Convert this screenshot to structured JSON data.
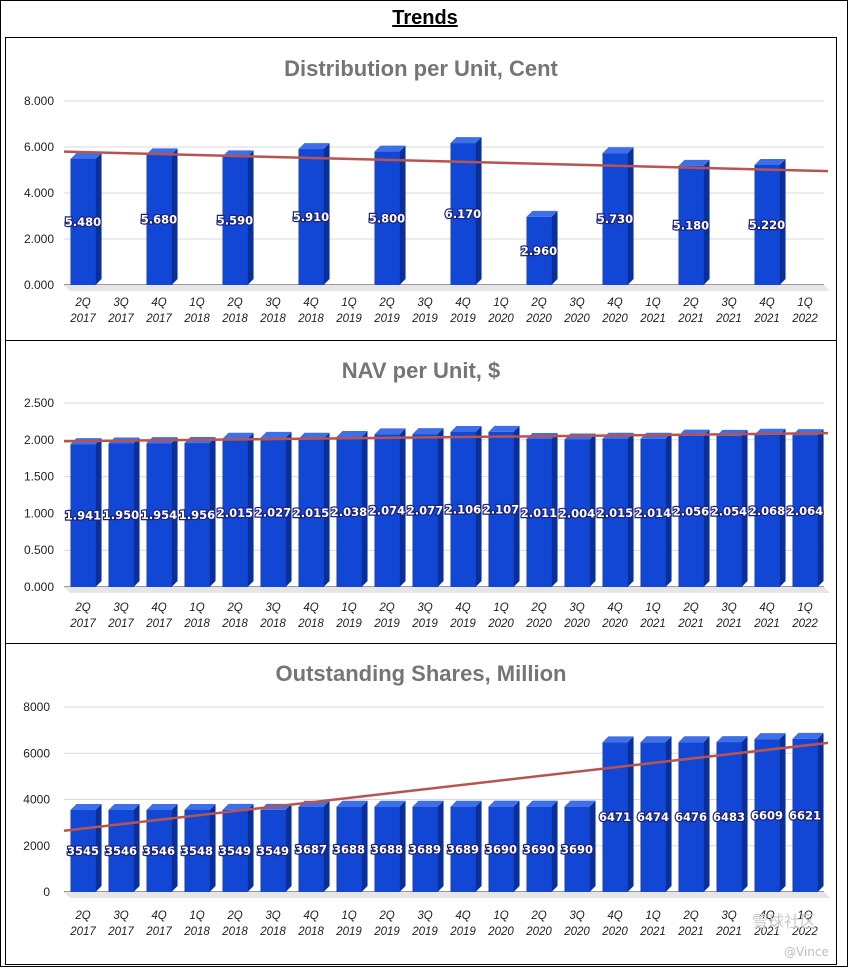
{
  "page_title": "Trends",
  "watermark": {
    "text": "雪球社区",
    "author": "@Vince"
  },
  "colors": {
    "bar_front": "#1247d6",
    "bar_side": "#0b2f94",
    "bar_top": "#3d6fe8",
    "trend": "#b85450",
    "grid": "#d9d9d9"
  },
  "chart_data": [
    {
      "id": "dist",
      "type": "bar",
      "title": "Distribution per Unit, Cent",
      "xlabel": "",
      "ylabel": "",
      "ylim": [
        0,
        8
      ],
      "y_ticks": [
        "8.000",
        "6.000",
        "4.000",
        "2.000",
        "0.000"
      ],
      "y_tick_values": [
        8,
        6,
        4,
        2,
        0
      ],
      "categories": [
        [
          "2Q",
          "2017"
        ],
        [
          "3Q",
          "2017"
        ],
        [
          "4Q",
          "2017"
        ],
        [
          "1Q",
          "2018"
        ],
        [
          "2Q",
          "2018"
        ],
        [
          "3Q",
          "2018"
        ],
        [
          "4Q",
          "2018"
        ],
        [
          "1Q",
          "2019"
        ],
        [
          "2Q",
          "2019"
        ],
        [
          "3Q",
          "2019"
        ],
        [
          "4Q",
          "2019"
        ],
        [
          "1Q",
          "2020"
        ],
        [
          "2Q",
          "2020"
        ],
        [
          "3Q",
          "2020"
        ],
        [
          "4Q",
          "2020"
        ],
        [
          "1Q",
          "2021"
        ],
        [
          "2Q",
          "2021"
        ],
        [
          "3Q",
          "2021"
        ],
        [
          "4Q",
          "2021"
        ],
        [
          "1Q",
          "2022"
        ]
      ],
      "values": [
        5.48,
        null,
        5.68,
        null,
        5.59,
        null,
        5.91,
        null,
        5.8,
        null,
        6.17,
        null,
        2.96,
        null,
        5.73,
        null,
        5.18,
        null,
        5.22,
        null
      ],
      "labels": [
        "5.480",
        "",
        "5.680",
        "",
        "5.590",
        "",
        "5.910",
        "",
        "5.800",
        "",
        "6.170",
        "",
        "2.960",
        "",
        "5.730",
        "",
        "5.180",
        "",
        "5.220",
        ""
      ],
      "trendline": {
        "start": 5.8,
        "end": 4.95
      }
    },
    {
      "id": "nav",
      "type": "bar",
      "title": "NAV per Unit, $",
      "xlabel": "",
      "ylabel": "",
      "ylim": [
        0,
        2.5
      ],
      "y_ticks": [
        "2.500",
        "2.000",
        "1.500",
        "1.000",
        "0.500",
        "0.000"
      ],
      "y_tick_values": [
        2.5,
        2.0,
        1.5,
        1.0,
        0.5,
        0
      ],
      "categories": [
        [
          "2Q",
          "2017"
        ],
        [
          "3Q",
          "2017"
        ],
        [
          "4Q",
          "2017"
        ],
        [
          "1Q",
          "2018"
        ],
        [
          "2Q",
          "2018"
        ],
        [
          "3Q",
          "2018"
        ],
        [
          "4Q",
          "2018"
        ],
        [
          "1Q",
          "2019"
        ],
        [
          "2Q",
          "2019"
        ],
        [
          "3Q",
          "2019"
        ],
        [
          "4Q",
          "2019"
        ],
        [
          "1Q",
          "2020"
        ],
        [
          "2Q",
          "2020"
        ],
        [
          "3Q",
          "2020"
        ],
        [
          "4Q",
          "2020"
        ],
        [
          "1Q",
          "2021"
        ],
        [
          "2Q",
          "2021"
        ],
        [
          "3Q",
          "2021"
        ],
        [
          "4Q",
          "2021"
        ],
        [
          "1Q",
          "2022"
        ]
      ],
      "values": [
        1.941,
        1.95,
        1.954,
        1.956,
        2.015,
        2.027,
        2.015,
        2.038,
        2.074,
        2.077,
        2.106,
        2.107,
        2.011,
        2.004,
        2.015,
        2.014,
        2.056,
        2.054,
        2.068,
        2.064
      ],
      "labels": [
        "1.941",
        "1.950",
        "1.954",
        "1.956",
        "2.015",
        "2.027",
        "2.015",
        "2.038",
        "2.074",
        "2.077",
        "2.106",
        "2.107",
        "2.011",
        "2.004",
        "2.015",
        "2.014",
        "2.056",
        "2.054",
        "2.068",
        "2.064"
      ],
      "trendline": {
        "start": 1.98,
        "end": 2.09
      }
    },
    {
      "id": "shares",
      "type": "bar",
      "title": "Outstanding Shares, Million",
      "xlabel": "",
      "ylabel": "",
      "ylim": [
        0,
        8000
      ],
      "y_ticks": [
        "8000",
        "6000",
        "4000",
        "2000",
        "0"
      ],
      "y_tick_values": [
        8000,
        6000,
        4000,
        2000,
        0
      ],
      "categories": [
        [
          "2Q",
          "2017"
        ],
        [
          "3Q",
          "2017"
        ],
        [
          "4Q",
          "2017"
        ],
        [
          "1Q",
          "2018"
        ],
        [
          "2Q",
          "2018"
        ],
        [
          "3Q",
          "2018"
        ],
        [
          "4Q",
          "2018"
        ],
        [
          "1Q",
          "2019"
        ],
        [
          "2Q",
          "2019"
        ],
        [
          "3Q",
          "2019"
        ],
        [
          "4Q",
          "2019"
        ],
        [
          "1Q",
          "2020"
        ],
        [
          "2Q",
          "2020"
        ],
        [
          "3Q",
          "2020"
        ],
        [
          "4Q",
          "2020"
        ],
        [
          "1Q",
          "2021"
        ],
        [
          "2Q",
          "2021"
        ],
        [
          "3Q",
          "2021"
        ],
        [
          "4Q",
          "2021"
        ],
        [
          "1Q",
          "2022"
        ]
      ],
      "values": [
        3545,
        3546,
        3546,
        3548,
        3549,
        3549,
        3687,
        3688,
        3688,
        3689,
        3689,
        3690,
        3690,
        3690,
        6471,
        6474,
        6476,
        6483,
        6609,
        6621
      ],
      "labels": [
        "3545",
        "3546",
        "3546",
        "3548",
        "3549",
        "3549",
        "3687",
        "3688",
        "3688",
        "3689",
        "3689",
        "3690",
        "3690",
        "3690",
        "6471",
        "6474",
        "6476",
        "6483",
        "6609",
        "6621"
      ],
      "trendline": {
        "start": 2650,
        "end": 6450
      }
    }
  ]
}
